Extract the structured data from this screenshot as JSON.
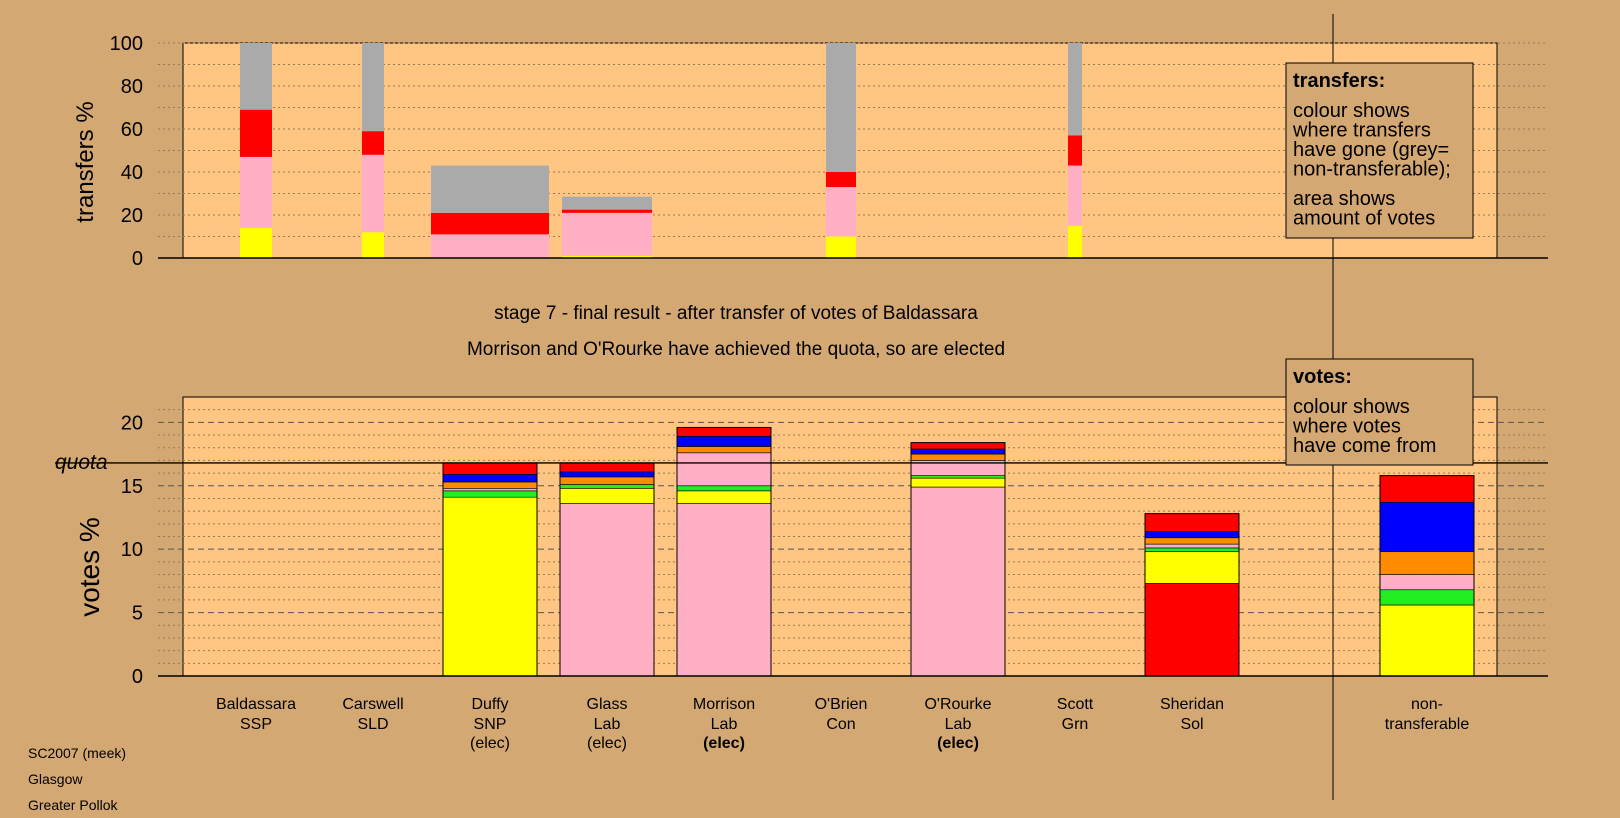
{
  "chart_data": {
    "type": "bar",
    "stage_title": "stage 7 - final result - after transfer of votes of Baldassara",
    "subtitle": "Morrison and O'Rourke have achieved the quota, so are elected",
    "transfers_chart": {
      "ylabel": "transfers %",
      "ylim": [
        0,
        100
      ],
      "yticks": [
        0,
        20,
        40,
        60,
        80,
        100
      ],
      "bars": [
        {
          "candidate": "Baldassara",
          "segments": [
            {
              "colour": "yellow",
              "value": 14
            },
            {
              "colour": "pink",
              "value": 33
            },
            {
              "colour": "red",
              "value": 22
            },
            {
              "colour": "grey",
              "value": 31
            }
          ]
        },
        {
          "candidate": "Carswell",
          "segments": [
            {
              "colour": "yellow",
              "value": 12
            },
            {
              "colour": "pink",
              "value": 36
            },
            {
              "colour": "red",
              "value": 11
            },
            {
              "colour": "grey",
              "value": 41
            }
          ]
        },
        {
          "candidate": "Duffy",
          "segments": [
            {
              "colour": "pink",
              "value": 11
            },
            {
              "colour": "red",
              "value": 10
            },
            {
              "colour": "grey",
              "value": 22
            }
          ]
        },
        {
          "candidate": "Glass",
          "segments": [
            {
              "colour": "yellow",
              "value": 1
            },
            {
              "colour": "pink",
              "value": 20
            },
            {
              "colour": "red",
              "value": 1.5
            },
            {
              "colour": "grey",
              "value": 6
            }
          ]
        },
        {
          "candidate": "O'Brien",
          "segments": [
            {
              "colour": "yellow",
              "value": 10
            },
            {
              "colour": "pink",
              "value": 23
            },
            {
              "colour": "red",
              "value": 7
            },
            {
              "colour": "grey",
              "value": 60
            }
          ]
        },
        {
          "candidate": "Scott",
          "segments": [
            {
              "colour": "yellow",
              "value": 15
            },
            {
              "colour": "pink",
              "value": 28
            },
            {
              "colour": "red",
              "value": 14
            },
            {
              "colour": "grey",
              "value": 43
            }
          ]
        }
      ]
    },
    "votes_chart": {
      "ylabel": "votes %",
      "quota_label": "quota",
      "quota": 16.8,
      "ylim": [
        0,
        22
      ],
      "yticks": [
        0,
        5,
        10,
        15,
        20
      ],
      "bars": [
        {
          "candidate": "Duffy",
          "segments": [
            {
              "colour": "yellow",
              "value": 14.1
            },
            {
              "colour": "green",
              "value": 0.5
            },
            {
              "colour": "pink",
              "value": 0.2
            },
            {
              "colour": "orange",
              "value": 0.5
            },
            {
              "colour": "blue",
              "value": 0.6
            },
            {
              "colour": "red",
              "value": 0.9
            }
          ]
        },
        {
          "candidate": "Glass",
          "segments": [
            {
              "colour": "pink",
              "value": 13.6
            },
            {
              "colour": "yellow",
              "value": 1.2
            },
            {
              "colour": "green",
              "value": 0.3
            },
            {
              "colour": "orange",
              "value": 0.6
            },
            {
              "colour": "blue",
              "value": 0.4
            },
            {
              "colour": "red",
              "value": 0.7
            }
          ]
        },
        {
          "candidate": "Morrison",
          "segments": [
            {
              "colour": "pink",
              "value": 13.6
            },
            {
              "colour": "yellow",
              "value": 1.0
            },
            {
              "colour": "green",
              "value": 0.4
            },
            {
              "colour": "pink",
              "value": 2.6
            },
            {
              "colour": "orange",
              "value": 0.5
            },
            {
              "colour": "blue",
              "value": 0.8
            },
            {
              "colour": "red",
              "value": 0.7
            }
          ]
        },
        {
          "candidate": "O'Rourke",
          "segments": [
            {
              "colour": "pink",
              "value": 14.9
            },
            {
              "colour": "yellow",
              "value": 0.7
            },
            {
              "colour": "green",
              "value": 0.2
            },
            {
              "colour": "pink",
              "value": 1.2
            },
            {
              "colour": "orange",
              "value": 0.5
            },
            {
              "colour": "blue",
              "value": 0.4
            },
            {
              "colour": "red",
              "value": 0.5
            }
          ]
        },
        {
          "candidate": "Sheridan",
          "segments": [
            {
              "colour": "red",
              "value": 7.3
            },
            {
              "colour": "yellow",
              "value": 2.5
            },
            {
              "colour": "green",
              "value": 0.3
            },
            {
              "colour": "pink",
              "value": 0.3
            },
            {
              "colour": "orange",
              "value": 0.5
            },
            {
              "colour": "blue",
              "value": 0.5
            },
            {
              "colour": "red",
              "value": 1.4
            }
          ]
        },
        {
          "candidate": "non-transferable",
          "segments": [
            {
              "colour": "yellow",
              "value": 5.6
            },
            {
              "colour": "green",
              "value": 1.2
            },
            {
              "colour": "pink",
              "value": 1.2
            },
            {
              "colour": "orange",
              "value": 1.8
            },
            {
              "colour": "blue",
              "value": 3.9
            },
            {
              "colour": "red",
              "value": 2.1
            }
          ]
        }
      ]
    },
    "candidates": [
      {
        "name": "Baldassara",
        "party": "SSP",
        "status": "",
        "bold": false
      },
      {
        "name": "Carswell",
        "party": "SLD",
        "status": "",
        "bold": false
      },
      {
        "name": "Duffy",
        "party": "SNP",
        "status": "(elec)",
        "bold": false
      },
      {
        "name": "Glass",
        "party": "Lab",
        "status": "(elec)",
        "bold": false
      },
      {
        "name": "Morrison",
        "party": "Lab",
        "status": "(elec)",
        "bold": true
      },
      {
        "name": "O'Brien",
        "party": "Con",
        "status": "",
        "bold": false
      },
      {
        "name": "O'Rourke",
        "party": "Lab",
        "status": "(elec)",
        "bold": true
      },
      {
        "name": "Scott",
        "party": "Grn",
        "status": "",
        "bold": false
      },
      {
        "name": "Sheridan",
        "party": "Sol",
        "status": "",
        "bold": false
      }
    ],
    "nontransferable_label": [
      "non-",
      "transferable"
    ],
    "legend_transfers": {
      "title": "transfers:",
      "lines1": [
        "colour shows",
        "where transfers",
        "have gone (grey=",
        "non-transferable);"
      ],
      "lines2": [
        "area shows",
        "amount of votes"
      ]
    },
    "legend_votes": {
      "title": "votes:",
      "lines": [
        "colour shows",
        "where votes",
        "have come from"
      ]
    },
    "colors": {
      "background": "#d4a872",
      "plot_bg": "#ffc683",
      "yellow": "#ffff00",
      "pink": "#ffafc3",
      "red": "#ff0000",
      "grey": "#aaaaaa",
      "blue": "#0000ff",
      "orange": "#ff8c00",
      "green": "#22ee22"
    }
  },
  "credits": [
    "SC2007 (meek)",
    "Glasgow",
    "Greater Pollok"
  ]
}
